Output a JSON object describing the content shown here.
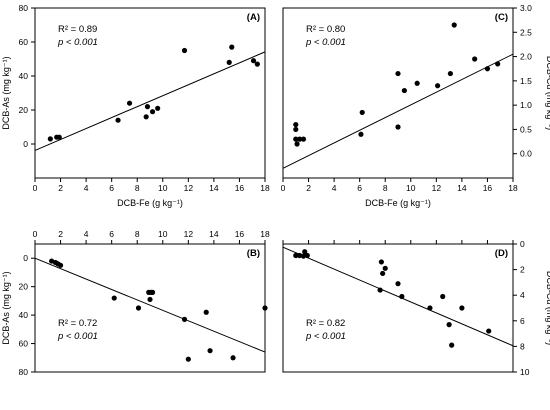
{
  "chart_data": [
    {
      "panel": "(A)",
      "type": "scatter",
      "xlabel": "DCB-Fe (g kg⁻¹)",
      "ylabel": "DCB-As (mg kg⁻¹)",
      "y_axis_side": "left",
      "xlim": [
        0,
        18
      ],
      "ylim": [
        -20,
        80
      ],
      "x_ticks": [
        0,
        2,
        4,
        6,
        8,
        10,
        12,
        14,
        16,
        18
      ],
      "y_ticks": [
        0,
        20,
        40,
        60,
        80
      ],
      "x_tick_labels_shown": true,
      "r2_text": "R² = 0.89",
      "p_text": "p < 0.001",
      "points": [
        [
          1.2,
          3
        ],
        [
          1.7,
          4
        ],
        [
          1.9,
          4
        ],
        [
          6.5,
          14
        ],
        [
          7.4,
          24
        ],
        [
          8.7,
          16
        ],
        [
          8.8,
          22
        ],
        [
          9.2,
          19
        ],
        [
          9.6,
          21
        ],
        [
          11.7,
          55
        ],
        [
          15.2,
          48
        ],
        [
          15.4,
          57
        ],
        [
          17.1,
          49
        ],
        [
          17.4,
          47
        ]
      ],
      "fit_line": [
        [
          0,
          -3.8
        ],
        [
          18,
          54.2
        ]
      ]
    },
    {
      "panel": "(C)",
      "type": "scatter",
      "xlabel": "DCB-Fe (g kg⁻¹)",
      "ylabel": "DCB-Cd (mg kg⁻¹)",
      "y_axis_side": "right",
      "xlim": [
        0,
        18
      ],
      "ylim": [
        -0.5,
        3.0
      ],
      "x_ticks": [
        0,
        2,
        4,
        6,
        8,
        10,
        12,
        14,
        16,
        18
      ],
      "y_ticks": [
        0.0,
        0.5,
        1.0,
        1.5,
        2.0,
        2.5,
        3.0
      ],
      "y_tick_labels": [
        "0.0",
        "0.5",
        "1.0",
        "1.5",
        "2.0",
        "2.5",
        "3.0"
      ],
      "x_tick_labels_shown": true,
      "r2_text": "R² = 0.80",
      "p_text": "p < 0.001",
      "points": [
        [
          1.0,
          0.6
        ],
        [
          1.0,
          0.5
        ],
        [
          1.0,
          0.3
        ],
        [
          1.1,
          0.2
        ],
        [
          1.3,
          0.3
        ],
        [
          1.6,
          0.3
        ],
        [
          6.1,
          0.4
        ],
        [
          6.2,
          0.85
        ],
        [
          9.0,
          0.55
        ],
        [
          9.0,
          1.65
        ],
        [
          9.5,
          1.3
        ],
        [
          10.5,
          1.45
        ],
        [
          12.1,
          1.4
        ],
        [
          13.1,
          1.65
        ],
        [
          13.4,
          2.65
        ],
        [
          15.0,
          1.95
        ],
        [
          16.0,
          1.75
        ],
        [
          16.8,
          1.85
        ]
      ],
      "fit_line": [
        [
          0,
          -0.3
        ],
        [
          18,
          2.05
        ]
      ]
    },
    {
      "panel": "(B)",
      "type": "scatter",
      "xlabel": "",
      "ylabel": "DCB-As (mg kg⁻¹)",
      "y_axis_side": "left",
      "x_axis_side": "top",
      "y_inverted": true,
      "xlim": [
        0,
        18
      ],
      "ylim": [
        -10,
        80
      ],
      "x_ticks": [
        0,
        2,
        4,
        6,
        8,
        10,
        12,
        14,
        16,
        18
      ],
      "y_ticks": [
        0,
        20,
        40,
        60,
        80
      ],
      "x_tick_labels_shown": true,
      "r2_text": "R² = 0.72",
      "p_text": "p < 0.001",
      "points": [
        [
          1.3,
          2
        ],
        [
          1.6,
          3
        ],
        [
          1.8,
          4
        ],
        [
          2.0,
          5
        ],
        [
          6.2,
          28
        ],
        [
          8.1,
          35
        ],
        [
          8.9,
          24
        ],
        [
          9.0,
          29
        ],
        [
          9.1,
          24
        ],
        [
          9.2,
          24
        ],
        [
          11.7,
          43
        ],
        [
          12.0,
          71
        ],
        [
          13.4,
          38
        ],
        [
          13.7,
          65
        ],
        [
          15.5,
          70
        ],
        [
          18.0,
          35
        ]
      ],
      "fit_line": [
        [
          0,
          0
        ],
        [
          18,
          66
        ]
      ]
    },
    {
      "panel": "(D)",
      "type": "scatter",
      "xlabel": "",
      "ylabel": "DCB-Cd (mg kg⁻¹)",
      "y_axis_side": "right",
      "x_axis_side": "top",
      "y_inverted": true,
      "xlim": [
        0,
        18
      ],
      "ylim": [
        0,
        10
      ],
      "x_ticks": [
        0,
        2,
        4,
        6,
        8,
        10,
        12,
        14,
        16,
        18
      ],
      "y_ticks": [
        0,
        2,
        4,
        6,
        8,
        10
      ],
      "x_tick_labels_shown": false,
      "r2_text": "R² = 0.82",
      "p_text": "p < 0.001",
      "points": [
        [
          1.0,
          0.9
        ],
        [
          1.3,
          0.9
        ],
        [
          1.6,
          0.95
        ],
        [
          1.7,
          0.6
        ],
        [
          1.9,
          0.9
        ],
        [
          7.7,
          1.4
        ],
        [
          7.8,
          2.3
        ],
        [
          8.0,
          1.9
        ],
        [
          7.6,
          3.6
        ],
        [
          9.0,
          3.1
        ],
        [
          9.3,
          4.1
        ],
        [
          11.5,
          5.0
        ],
        [
          12.5,
          4.1
        ],
        [
          13.0,
          6.3
        ],
        [
          13.2,
          7.9
        ],
        [
          14.0,
          5.0
        ],
        [
          16.1,
          6.8
        ]
      ],
      "fit_line": [
        [
          0,
          0.25
        ],
        [
          18,
          7.95
        ]
      ]
    }
  ]
}
